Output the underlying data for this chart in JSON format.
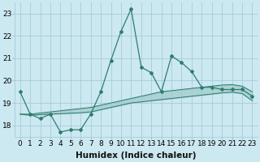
{
  "xlabel": "Humidex (Indice chaleur)",
  "x": [
    0,
    1,
    2,
    3,
    4,
    5,
    6,
    7,
    8,
    9,
    10,
    11,
    12,
    13,
    14,
    15,
    16,
    17,
    18,
    19,
    20,
    21,
    22,
    23
  ],
  "y_main": [
    19.5,
    18.5,
    18.3,
    18.5,
    17.7,
    17.8,
    17.8,
    18.5,
    19.5,
    20.9,
    22.2,
    23.2,
    20.6,
    20.35,
    19.5,
    21.1,
    20.8,
    20.4,
    19.7,
    19.7,
    19.6,
    19.6,
    19.6,
    19.3
  ],
  "y_upper": [
    18.5,
    18.5,
    18.55,
    18.6,
    18.65,
    18.7,
    18.75,
    18.8,
    18.9,
    19.0,
    19.1,
    19.2,
    19.3,
    19.4,
    19.5,
    19.55,
    19.6,
    19.65,
    19.7,
    19.75,
    19.8,
    19.82,
    19.75,
    19.5
  ],
  "y_lower": [
    18.5,
    18.45,
    18.48,
    18.5,
    18.52,
    18.54,
    18.56,
    18.6,
    18.7,
    18.8,
    18.9,
    19.0,
    19.05,
    19.1,
    19.15,
    19.2,
    19.25,
    19.3,
    19.35,
    19.4,
    19.45,
    19.48,
    19.42,
    19.1
  ],
  "line_color": "#2e7d6e",
  "bg_color": "#cce8f0",
  "grid_color": "#9fc8d5",
  "tick_label_fontsize": 6.5,
  "ylim": [
    17.5,
    23.5
  ],
  "yticks": [
    18,
    19,
    20,
    21,
    22,
    23
  ],
  "xlabel_fontsize": 7.5
}
